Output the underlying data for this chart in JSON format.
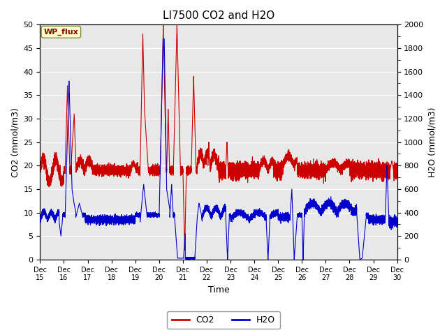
{
  "title": "LI7500 CO2 and H2O",
  "xlabel": "Time",
  "ylabel_left": "CO2 (mmol/m3)",
  "ylabel_right": "H2O (mmol/m3)",
  "xlim_days": [
    15,
    30
  ],
  "ylim_left": [
    0,
    50
  ],
  "ylim_right": [
    0,
    2000
  ],
  "yticks_left": [
    0,
    5,
    10,
    15,
    20,
    25,
    30,
    35,
    40,
    45,
    50
  ],
  "yticks_right": [
    0,
    200,
    400,
    600,
    800,
    1000,
    1200,
    1400,
    1600,
    1800,
    2000
  ],
  "xtick_labels": [
    "Dec 15",
    "Dec 16",
    "Dec 17",
    "Dec 18",
    "Dec 19",
    "Dec 20",
    "Dec 21",
    "Dec 22",
    "Dec 23",
    "Dec 24",
    "Dec 25",
    "Dec 26",
    "Dec 27",
    "Dec 28",
    "Dec 29",
    "Dec 30"
  ],
  "xtick_positions": [
    15,
    16,
    17,
    18,
    19,
    20,
    21,
    22,
    23,
    24,
    25,
    26,
    27,
    28,
    29,
    30
  ],
  "co2_color": "#cc0000",
  "h2o_color": "#0000cc",
  "plot_bg_color": "#e8e8e8",
  "grid_color": "#ffffff",
  "annotation_text": "WP_flux",
  "legend_co2": "CO2",
  "legend_h2o": "H2O",
  "h2o_scale_factor": 40,
  "figsize": [
    6.4,
    4.8
  ],
  "dpi": 100
}
